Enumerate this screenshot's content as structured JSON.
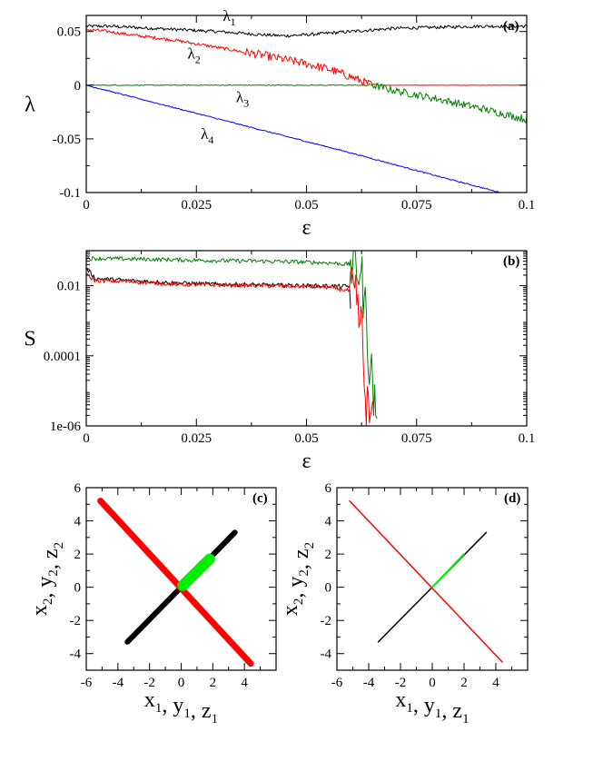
{
  "chart_data": [
    {
      "id": "a",
      "type": "line",
      "panel_label": "(a)",
      "xlabel": "ε",
      "ylabel": "λ",
      "xlim": [
        0,
        0.1
      ],
      "ylim": [
        -0.1,
        0.065
      ],
      "xticks": [
        "0",
        "0.025",
        "0.05",
        "0.075",
        "0.1"
      ],
      "xtick_values": [
        0,
        0.025,
        0.05,
        0.075,
        0.1
      ],
      "yticks": [
        "0.05",
        "0",
        "-0.05",
        "-0.1"
      ],
      "ytick_values": [
        0.05,
        0,
        -0.05,
        -0.1
      ],
      "series": [
        {
          "name": "λ1",
          "label_main": "λ",
          "label_sub": "1",
          "color": "#000000",
          "label_at": [
            0.031,
            0.06
          ],
          "x": [
            0,
            0.005,
            0.01,
            0.02,
            0.03,
            0.04,
            0.045,
            0.05,
            0.06,
            0.07,
            0.08,
            0.09,
            0.1
          ],
          "y": [
            0.055,
            0.055,
            0.054,
            0.052,
            0.05,
            0.047,
            0.046,
            0.047,
            0.05,
            0.053,
            0.054,
            0.055,
            0.055
          ]
        },
        {
          "name": "λ2",
          "label_main": "λ",
          "label_sub": "2",
          "color": "#ff0000",
          "label_at": [
            0.023,
            0.025
          ],
          "x": [
            0,
            0.005,
            0.01,
            0.02,
            0.03,
            0.04,
            0.05,
            0.055,
            0.06,
            0.063,
            0.065,
            0.07,
            0.08,
            0.09,
            0.1
          ],
          "y": [
            0.052,
            0.05,
            0.047,
            0.042,
            0.035,
            0.028,
            0.02,
            0.015,
            0.008,
            0.003,
            0.0,
            0.0,
            0.0,
            0.0,
            0.0
          ]
        },
        {
          "name": "λ3",
          "label_main": "λ",
          "label_sub": "3",
          "color": "#008000",
          "label_at": [
            0.034,
            -0.016
          ],
          "x": [
            0,
            0.01,
            0.02,
            0.03,
            0.04,
            0.05,
            0.06,
            0.065,
            0.07,
            0.08,
            0.09,
            0.1
          ],
          "y": [
            0.0,
            0.0,
            0.0,
            0.0,
            0.0,
            0.0,
            0.0,
            0.0,
            -0.005,
            -0.013,
            -0.022,
            -0.032
          ]
        },
        {
          "name": "λ4",
          "label_main": "λ",
          "label_sub": "4",
          "color": "#0000ff",
          "label_at": [
            0.026,
            -0.05
          ],
          "x": [
            0,
            0.02,
            0.04,
            0.06,
            0.08,
            0.094
          ],
          "y": [
            0.0,
            -0.021,
            -0.042,
            -0.063,
            -0.085,
            -0.1
          ]
        }
      ]
    },
    {
      "id": "b",
      "type": "line",
      "panel_label": "(b)",
      "xlabel": "ε",
      "ylabel": "S",
      "yscale": "log",
      "xlim": [
        0,
        0.1
      ],
      "ylim": [
        1e-06,
        0.1
      ],
      "xticks": [
        "0",
        "0.025",
        "0.05",
        "0.075",
        "0.1"
      ],
      "xtick_values": [
        0,
        0.025,
        0.05,
        0.075,
        0.1
      ],
      "yticks": [
        "0.01",
        "0.0001",
        "1e-06"
      ],
      "ytick_values": [
        0.01,
        0.0001,
        1e-06
      ],
      "series": [
        {
          "name": "green",
          "color": "#008000",
          "x": [
            0,
            0.01,
            0.02,
            0.03,
            0.04,
            0.05,
            0.055,
            0.06,
            0.062,
            0.063,
            0.064,
            0.065,
            0.066
          ],
          "y": [
            0.06,
            0.058,
            0.055,
            0.052,
            0.05,
            0.047,
            0.045,
            0.04,
            0.03,
            0.003,
            0.0001,
            1e-05,
            1e-06
          ]
        },
        {
          "name": "black",
          "color": "#000000",
          "x": [
            0,
            0.002,
            0.01,
            0.02,
            0.03,
            0.04,
            0.05,
            0.055,
            0.06
          ],
          "y": [
            0.03,
            0.016,
            0.014,
            0.012,
            0.011,
            0.0105,
            0.01,
            0.0098,
            0.0095
          ]
        },
        {
          "name": "red",
          "color": "#ff0000",
          "x": [
            0,
            0.002,
            0.01,
            0.02,
            0.03,
            0.04,
            0.05,
            0.055,
            0.06,
            0.062,
            0.063,
            0.064,
            0.065
          ],
          "y": [
            0.02,
            0.014,
            0.013,
            0.011,
            0.0105,
            0.01,
            0.0095,
            0.009,
            0.007,
            0.001,
            1e-05,
            2e-06,
            1e-06
          ]
        }
      ]
    },
    {
      "id": "c",
      "type": "line",
      "panel_label": "(c)",
      "xlabel_parts": [
        [
          "x",
          "1"
        ],
        [
          "y",
          "1"
        ],
        [
          "z",
          "1"
        ]
      ],
      "ylabel_parts": [
        [
          "x",
          "2"
        ],
        [
          "y",
          "2"
        ],
        [
          "z",
          "2"
        ]
      ],
      "xlim": [
        -6,
        6
      ],
      "ylim": [
        -5,
        6
      ],
      "xticks": [
        "-6",
        "-4",
        "-2",
        "0",
        "2",
        "4"
      ],
      "xtick_values": [
        -6,
        -4,
        -2,
        0,
        2,
        4
      ],
      "yticks": [
        "6",
        "4",
        "2",
        "0",
        "-2",
        "-4"
      ],
      "ytick_values": [
        6,
        4,
        2,
        0,
        -2,
        -4
      ],
      "series": [
        {
          "name": "x",
          "color": "#000000",
          "width": 6,
          "x": [
            -3.4,
            3.4
          ],
          "y": [
            -3.3,
            3.3
          ]
        },
        {
          "name": "y",
          "color": "#ff0000",
          "width": 7,
          "x": [
            -5.1,
            4.4
          ],
          "y": [
            5.2,
            -4.6
          ]
        },
        {
          "name": "z",
          "color": "#00ee00",
          "width": 12,
          "x": [
            0.1,
            1.8
          ],
          "y": [
            0.1,
            1.7
          ]
        }
      ]
    },
    {
      "id": "d",
      "type": "line",
      "panel_label": "(d)",
      "xlabel_parts": [
        [
          "x",
          "1"
        ],
        [
          "y",
          "1"
        ],
        [
          "z",
          "1"
        ]
      ],
      "ylabel_parts": [
        [
          "x",
          "2"
        ],
        [
          "y",
          "2"
        ],
        [
          "z",
          "2"
        ]
      ],
      "xlim": [
        -6,
        6
      ],
      "ylim": [
        -5,
        6
      ],
      "xticks": [
        "-6",
        "-4",
        "-2",
        "0",
        "2",
        "4"
      ],
      "xtick_values": [
        -6,
        -4,
        -2,
        0,
        2,
        4
      ],
      "yticks": [
        "6",
        "4",
        "2",
        "0",
        "-2",
        "-4"
      ],
      "ytick_values": [
        6,
        4,
        2,
        0,
        -2,
        -4
      ],
      "series": [
        {
          "name": "x",
          "color": "#000000",
          "width": 1.5,
          "x": [
            -3.4,
            3.4
          ],
          "y": [
            -3.3,
            3.3
          ]
        },
        {
          "name": "y",
          "color": "#ff0000",
          "width": 1.5,
          "x": [
            -5.2,
            4.4
          ],
          "y": [
            5.2,
            -4.5
          ]
        },
        {
          "name": "z",
          "color": "#00ee00",
          "width": 2,
          "x": [
            0.0,
            2.0
          ],
          "y": [
            0.0,
            2.0
          ]
        }
      ]
    }
  ]
}
